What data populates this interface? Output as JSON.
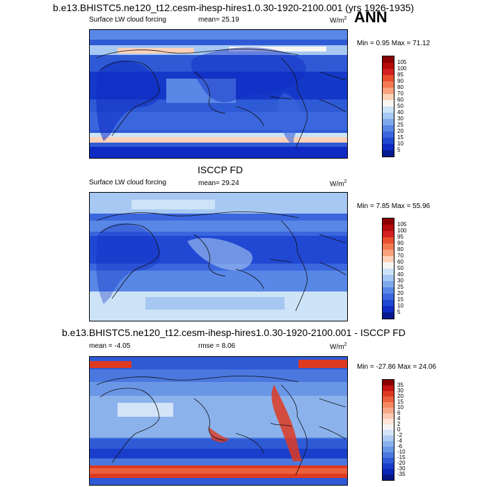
{
  "header": {
    "title": "b.e13.BHISTC5.ne120_t12.cesm-ihesp-hires1.0.30-1920-2100.001 (yrs 1926-1935)",
    "season": "ANN"
  },
  "panels": [
    {
      "var_label": "Surface LW cloud forcing",
      "mean_text": "mean=  25.19",
      "units_text": "W/m",
      "units_sup": "2",
      "minmax_text": "Min =   0.95 Max =  71.12",
      "colorbar_labels": [
        "105",
        "100",
        "95",
        "90",
        "80",
        "70",
        "60",
        "50",
        "40",
        "30",
        "25",
        "20",
        "15",
        "10",
        "5"
      ],
      "colorbar_colors": [
        "#8b0000",
        "#b40a0a",
        "#d42020",
        "#e8502e",
        "#f47a52",
        "#f9a27e",
        "#fcd2b8",
        "#f6f6f2",
        "#cde3f7",
        "#a6c8f2",
        "#7fa8ec",
        "#5887e6",
        "#3a66de",
        "#2148d3",
        "#0f2bc4",
        "#071a8f"
      ]
    },
    {
      "section_title": "ISCCP FD",
      "var_label": "Surface LW cloud forcing",
      "mean_text": "mean=  29.24",
      "units_text": "W/m",
      "units_sup": "2",
      "minmax_text": "Min =   7.85 Max =  55.96",
      "colorbar_labels": [
        "105",
        "100",
        "95",
        "90",
        "80",
        "70",
        "60",
        "50",
        "40",
        "30",
        "25",
        "20",
        "15",
        "10",
        "5"
      ],
      "colorbar_colors": [
        "#8b0000",
        "#b40a0a",
        "#d42020",
        "#e8502e",
        "#f47a52",
        "#f9a27e",
        "#fcd2b8",
        "#f6f6f2",
        "#cde3f7",
        "#a6c8f2",
        "#7fa8ec",
        "#5887e6",
        "#3a66de",
        "#2148d3",
        "#0f2bc4",
        "#071a8f"
      ]
    },
    {
      "section_title": "b.e13.BHISTC5.ne120_t12.cesm-ihesp-hires1.0.30-1920-2100.001 - ISCCP FD",
      "mean_text": "mean =  -4.05",
      "rmse_text": "rmse =   8.06",
      "units_text": "W/m",
      "units_sup": "2",
      "minmax_text": "Min = -27.86 Max =  24.06",
      "colorbar_labels": [
        "35",
        "30",
        "20",
        "15",
        "10",
        "6",
        "4",
        "2",
        "0",
        "-2",
        "-4",
        "-6",
        "-10",
        "-15",
        "-20",
        "-30",
        "-35"
      ],
      "colorbar_colors": [
        "#8b0000",
        "#c41414",
        "#de3a22",
        "#ec5f3c",
        "#f58860",
        "#f8a888",
        "#fbc8b0",
        "#fde4d6",
        "#f4f4f4",
        "#d3e4f8",
        "#b0ccf2",
        "#8cb2ec",
        "#6a96e6",
        "#4a78de",
        "#2f5ad6",
        "#1a3ecb",
        "#0b25b8",
        "#061682"
      ]
    }
  ]
}
